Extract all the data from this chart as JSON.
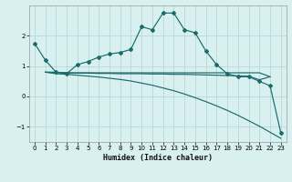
{
  "xlabel": "Humidex (Indice chaleur)",
  "bg_color": "#d9f0f0",
  "grid_color": "#b8d8d8",
  "line_color": "#1a6b6b",
  "xlim": [
    -0.5,
    23.5
  ],
  "ylim": [
    -1.5,
    3.0
  ],
  "yticks": [
    -1,
    0,
    1,
    2
  ],
  "xticks": [
    0,
    1,
    2,
    3,
    4,
    5,
    6,
    7,
    8,
    9,
    10,
    11,
    12,
    13,
    14,
    15,
    16,
    17,
    18,
    19,
    20,
    21,
    22,
    23
  ],
  "line1_x": [
    0,
    1,
    2,
    3,
    4,
    5,
    6,
    7,
    8,
    9,
    10,
    11,
    12,
    13,
    14,
    15,
    16,
    17,
    18,
    19,
    20,
    21,
    22,
    23
  ],
  "line1_y": [
    1.75,
    1.2,
    0.8,
    0.75,
    1.05,
    1.15,
    1.3,
    1.4,
    1.45,
    1.55,
    2.3,
    2.2,
    2.75,
    2.75,
    2.2,
    2.1,
    1.5,
    1.05,
    0.75,
    0.65,
    0.65,
    0.5,
    0.35,
    -1.2
  ],
  "line2_x": [
    1,
    2,
    3,
    4,
    5,
    6,
    7,
    8,
    9,
    10,
    11,
    12,
    13,
    14,
    15,
    16,
    17,
    18,
    19,
    20,
    21,
    22
  ],
  "line2_y": [
    0.8,
    0.8,
    0.78,
    0.78,
    0.78,
    0.78,
    0.78,
    0.78,
    0.78,
    0.78,
    0.78,
    0.78,
    0.78,
    0.78,
    0.78,
    0.78,
    0.78,
    0.78,
    0.78,
    0.78,
    0.78,
    0.65
  ],
  "line3_x": [
    1,
    2,
    3,
    4,
    5,
    6,
    7,
    8,
    9,
    10,
    11,
    12,
    13,
    14,
    15,
    16,
    17,
    18,
    19,
    20,
    21,
    22,
    23
  ],
  "line3_y": [
    0.8,
    0.75,
    0.73,
    0.7,
    0.67,
    0.64,
    0.6,
    0.56,
    0.51,
    0.44,
    0.37,
    0.28,
    0.19,
    0.08,
    -0.04,
    -0.17,
    -0.31,
    -0.46,
    -0.62,
    -0.8,
    -0.98,
    -1.18,
    -1.38
  ],
  "line4_x": [
    1,
    2,
    3,
    4,
    5,
    6,
    7,
    8,
    9,
    10,
    11,
    12,
    13,
    14,
    15,
    16,
    17,
    18,
    19,
    20,
    21,
    22
  ],
  "line4_y": [
    0.8,
    0.79,
    0.78,
    0.77,
    0.77,
    0.76,
    0.76,
    0.75,
    0.75,
    0.75,
    0.74,
    0.74,
    0.73,
    0.73,
    0.72,
    0.71,
    0.7,
    0.69,
    0.68,
    0.67,
    0.55,
    0.65
  ]
}
